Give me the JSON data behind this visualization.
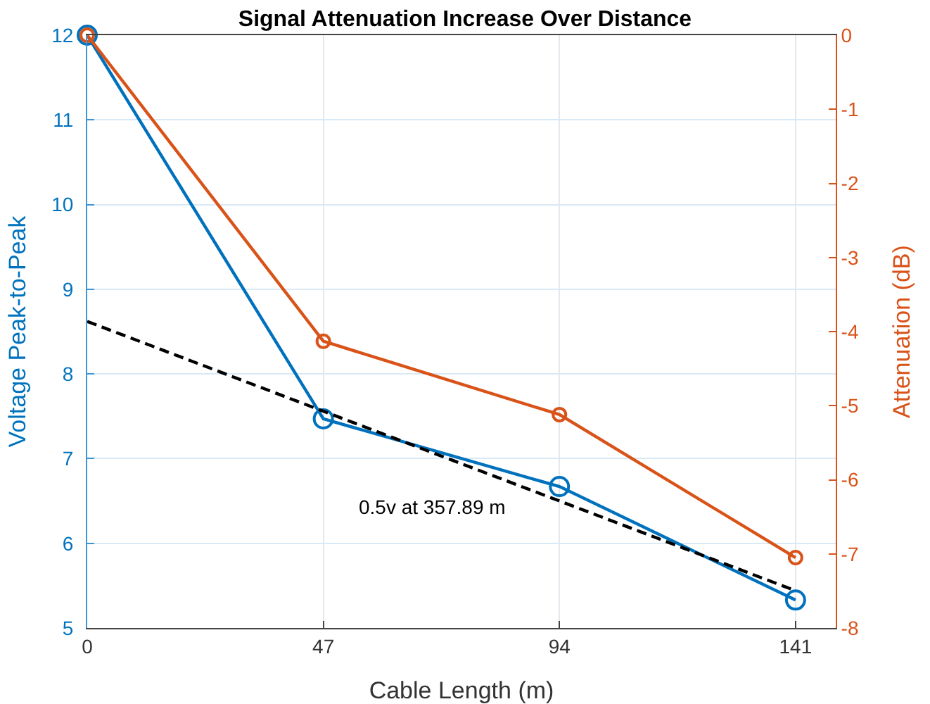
{
  "chart_data": {
    "type": "line",
    "title": "Signal Attenuation Increase Over Distance",
    "xlabel": "Cable Length (m)",
    "ylabel": "Voltage Peak-to-Peak",
    "y2label": "Attenuation (dB)",
    "x": [
      0,
      47,
      94,
      141
    ],
    "series": [
      {
        "color": "#0072bd",
        "values": [
          12,
          7.47,
          6.67,
          5.33
        ],
        "marker": "circle",
        "line_style": "solid"
      },
      {
        "color": "#d95319",
        "values": [
          0,
          -4.13,
          -5.12,
          -7.05
        ],
        "axis": "y2",
        "marker": "circle",
        "line_style": "solid"
      },
      {
        "type": "line",
        "color": "#000000",
        "x": [
          0,
          141
        ],
        "values": [
          8.62,
          5.44
        ],
        "marker": "none",
        "line_style": "dashed"
      }
    ],
    "xlim": [
      0,
      149
    ],
    "xticks": [
      0,
      47,
      94,
      141
    ],
    "ylim": [
      5,
      12
    ],
    "yticks": [
      5,
      6,
      7,
      8,
      9,
      10,
      11,
      12
    ],
    "y2lim": [
      -8,
      0
    ],
    "y2ticks": [
      -8,
      -7,
      -6,
      -5,
      -4,
      -3,
      -2,
      -1,
      0
    ],
    "annotations": [
      "0.5v at 357.89 m"
    ],
    "grid": true
  }
}
